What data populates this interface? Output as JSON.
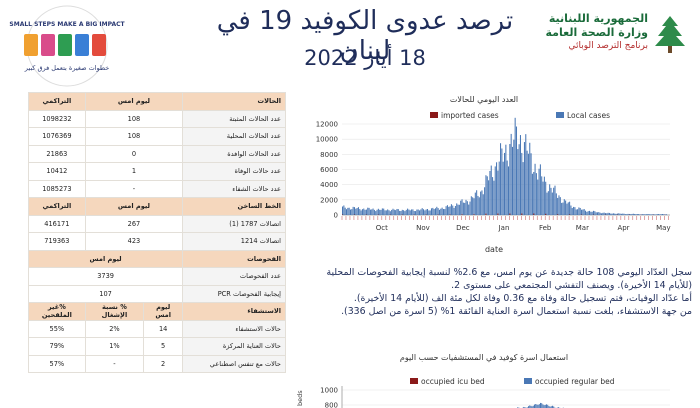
{
  "header": {
    "title": "ترصد عدوى الكوفيد 19 في لبنان",
    "date": "18 أيار 2022",
    "gov_line1": "الجمهورية اللبنانية",
    "gov_line2": "وزارة الصحة العامة",
    "gov_line3": "برنامج الترصد الوبائي",
    "campaign_logo": {
      "line_top": "SMALL STEPS MAKE A BIG IMPACT",
      "line_bottom": "خطوات صغيرة بتعمل فرق كبير"
    }
  },
  "table": {
    "cases": {
      "header": {
        "label": "الحالات",
        "today": "ليوم امس",
        "total": "التراكمي"
      },
      "rows": [
        {
          "label": "عدد الحالات المثبتة",
          "today": "108",
          "total": "1098232"
        },
        {
          "label": "عدد الحالات المحلية",
          "today": "108",
          "total": "1076369"
        },
        {
          "label": "عدد الحالات الوافدة",
          "today": "0",
          "total": "21863"
        },
        {
          "label": "عدد حالات الوفاة",
          "today": "1",
          "total": "10412"
        },
        {
          "label": "عدد حالات الشفاء",
          "today": "-",
          "total": "1085273"
        }
      ]
    },
    "hotline": {
      "header": {
        "label": "الخط الساخن",
        "today": "ليوم امس",
        "total": "التراكمي"
      },
      "rows": [
        {
          "label": "اتصالات 1787 (1)",
          "today": "267",
          "total": "416171"
        },
        {
          "label": "اتصالات 1214",
          "today": "423",
          "total": "719363"
        }
      ]
    },
    "tests": {
      "header": {
        "label": "الفحوصات",
        "today": "ليوم امس"
      },
      "rows": [
        {
          "label": "عدد الفحوصات",
          "value": "3739"
        },
        {
          "label": "إيجابية الفحوصات PCR",
          "value": "107"
        }
      ]
    },
    "hospital": {
      "header": {
        "label": "الاستشفاء",
        "today": "ليوم امس",
        "change": "% نسبة الإشغال",
        "pct": "%غير الملقحين"
      },
      "rows": [
        {
          "label": "حالات الاستشفاء",
          "today": "14",
          "change": "2%",
          "pct": "55%"
        },
        {
          "label": "حالات العناية المركزة",
          "today": "5",
          "change": "1%",
          "pct": "79%"
        },
        {
          "label": "حالات مع تنفس اصطناعي",
          "today": "2",
          "change": "-",
          "pct": "57%"
        }
      ]
    }
  },
  "paragraph": {
    "line1": "سجل العدّاد اليومي 108 حالة جديدة عن يوم امس، مع 2.6% لنسبة إيجابية الفحوصات المحلية",
    "line2": "(للأيام 14 الأخيرة). ويصنف التفشي المجتمعي على مستوى 2.",
    "line3": "أما عدّاد الوفيات، فتم تسجيل حالة وفاة مع 0.36 وفاة لكل مئة الف (للأيام 14 الأخيرة).",
    "line4": "من جهة الاستشفاء، بلغت نسبة استعمال اسرة العناية الفائقة 1% (5 اسرة من اصل 336)."
  },
  "chart_data": [
    {
      "type": "bar",
      "title": "العدد اليومي للحالات",
      "xlabel": "date",
      "ylabel": "",
      "ylim": [
        0,
        12000
      ],
      "yticks": [
        0,
        2000,
        4000,
        6000,
        8000,
        10000,
        12000
      ],
      "month_labels": [
        "Oct",
        "Nov",
        "Dec",
        "Jan",
        "Feb",
        "Mar",
        "Apr",
        "May"
      ],
      "legend_placement": "top",
      "series": [
        {
          "name": "imported cases",
          "color": "#8b1a1a"
        },
        {
          "name": "Local cases",
          "color": "#4a78b5"
        }
      ],
      "x_dates": [
        "2021-09-15",
        "2021-10-01",
        "2021-10-15",
        "2021-11-01",
        "2021-11-15",
        "2021-12-01",
        "2021-12-10",
        "2021-12-20",
        "2021-12-28",
        "2022-01-05",
        "2022-01-10",
        "2022-01-15",
        "2022-01-20",
        "2022-01-25",
        "2022-02-01",
        "2022-02-08",
        "2022-02-15",
        "2022-02-22",
        "2022-03-01",
        "2022-03-10",
        "2022-03-20",
        "2022-04-01",
        "2022-04-15",
        "2022-05-01",
        "2022-05-17"
      ],
      "local_values": [
        1000,
        800,
        700,
        650,
        700,
        950,
        1400,
        2000,
        3000,
        5500,
        7000,
        8000,
        9500,
        10400,
        8500,
        6000,
        4200,
        3000,
        1800,
        900,
        500,
        250,
        150,
        100,
        108
      ]
    },
    {
      "type": "bar",
      "title": "استعمال اسرة كوفيد في المستشفيات حسب اليوم",
      "xlabel": "",
      "ylabel": "beds",
      "ylim": [
        0,
        1000
      ],
      "yticks": [
        800,
        1000
      ],
      "legend_placement": "top",
      "series": [
        {
          "name": "occupied icu bed",
          "color": "#8b1a1a"
        },
        {
          "name": "occupied regular bed",
          "color": "#4a78b5"
        }
      ]
    }
  ]
}
